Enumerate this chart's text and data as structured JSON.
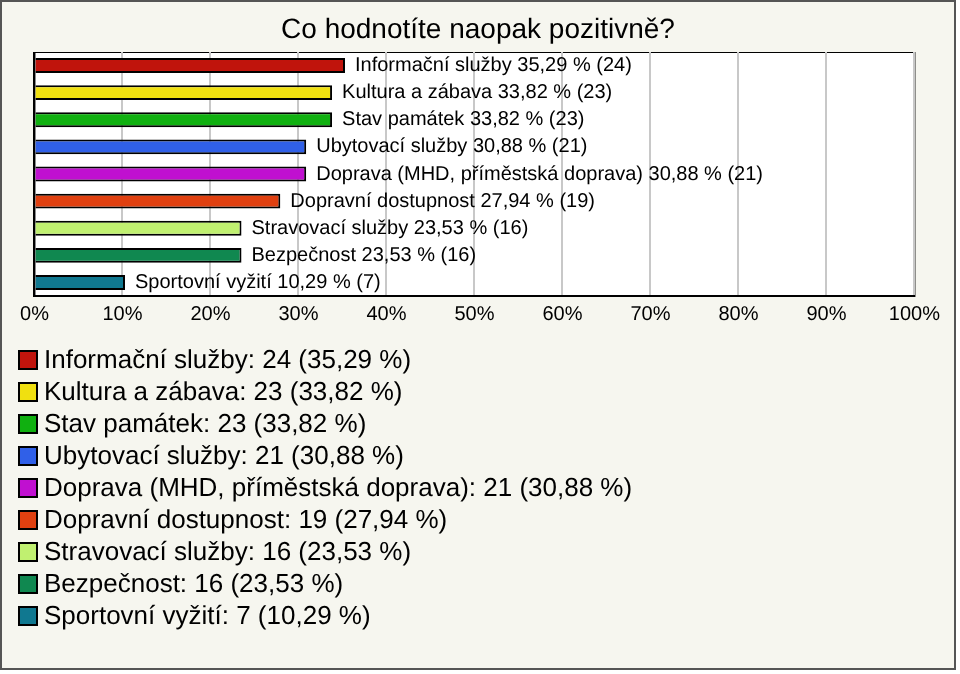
{
  "chart_data": {
    "type": "bar",
    "orientation": "horizontal",
    "title": "Co hodnotíte naopak pozitivně?",
    "categories": [
      "Informační služby",
      "Kultura a zábava",
      "Stav památek",
      "Ubytovací služby",
      "Doprava (MHD, příměstská doprava)",
      "Dopravní dostupnost",
      "Stravovací služby",
      "Bezpečnost",
      "Sportovní vyžití"
    ],
    "values": [
      35.29,
      33.82,
      33.82,
      30.88,
      30.88,
      27.94,
      23.53,
      23.53,
      10.29
    ],
    "colors": [
      "#c0140c",
      "#f0e010",
      "#10b010",
      "#3060e8",
      "#c010d0",
      "#e04010",
      "#c0f070",
      "#108850",
      "#107890"
    ],
    "value_labels": [
      "35,29 % (24)",
      "33,82 % (23)",
      "33,82 % (23)",
      "30,88 % (21)",
      "30,88 % (21)",
      "27,94 % (19)",
      "23,53 % (16)",
      "23,53 % (16)",
      "10,29 % (7)"
    ],
    "xlim": [
      0,
      100
    ],
    "xticks": [
      {
        "value": 0,
        "label": "0%"
      },
      {
        "value": 10,
        "label": "10%"
      },
      {
        "value": 20,
        "label": "20%"
      },
      {
        "value": 30,
        "label": "30%"
      },
      {
        "value": 40,
        "label": "40%"
      },
      {
        "value": 50,
        "label": "50%"
      },
      {
        "value": 60,
        "label": "60%"
      },
      {
        "value": 70,
        "label": "70%"
      },
      {
        "value": 80,
        "label": "80%"
      },
      {
        "value": 90,
        "label": "90%"
      },
      {
        "value": 100,
        "label": "100%"
      }
    ],
    "grid": "x",
    "tick_labels": "x",
    "annotations": [
      "Informační služby: 24 (35,29 %)",
      "Kultura a zábava: 23 (33,82 %)",
      "Stav památek: 23 (33,82 %)",
      "Ubytovací služby: 21 (30,88 %)",
      "Doprava (MHD, příměstská doprava): 21 (30,88 %)",
      "Dopravní dostupnost: 19 (27,94 %)",
      "Stravovací služby: 16 (23,53 %)",
      "Bezpečnost: 16 (23,53 %)",
      "Sportovní vyžití: 7 (10,29 %)"
    ]
  }
}
